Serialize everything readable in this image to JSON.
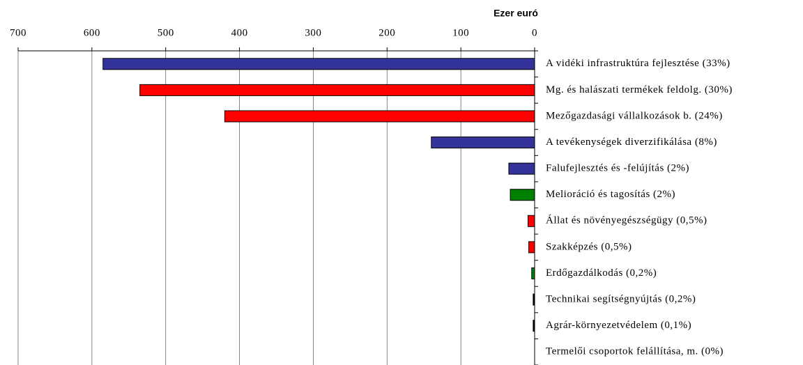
{
  "chart_data": {
    "type": "bar",
    "orientation": "horizontal",
    "x_reversed": true,
    "axis_label": "Ezer euró",
    "categories": [
      "A vidéki infrastruktúra fejlesztése (33%)",
      "Mg. és halászati termékek feldolg. (30%)",
      "Mezőgazdasági vállalkozások b. (24%)",
      "A tevékenységek diverzifikálása (8%)",
      "Falufejlesztés és -felújítás (2%)",
      "Melioráció és tagosítás (2%)",
      "Állat és növényegészségügy (0,5%)",
      "Szakképzés (0,5%)",
      "Erdőgazdálkodás (0,2%)",
      "Technikai segítségnyújtás (0,2%)",
      "Agrár-környezetvédelem (0,1%)",
      "Termelői csoportok felállítása, m. (0%)"
    ],
    "values": [
      585,
      535,
      420,
      140,
      35,
      33,
      9,
      8,
      4,
      2,
      2,
      0
    ],
    "colors": [
      "#333399",
      "#ff0000",
      "#ff0000",
      "#333399",
      "#333399",
      "#008000",
      "#ff0000",
      "#ff0000",
      "#008000",
      "#000000",
      "#000000",
      "#000000"
    ],
    "xlim": [
      0,
      700
    ],
    "xticks": [
      700,
      600,
      500,
      400,
      300,
      200,
      100,
      0
    ],
    "grid": true
  }
}
